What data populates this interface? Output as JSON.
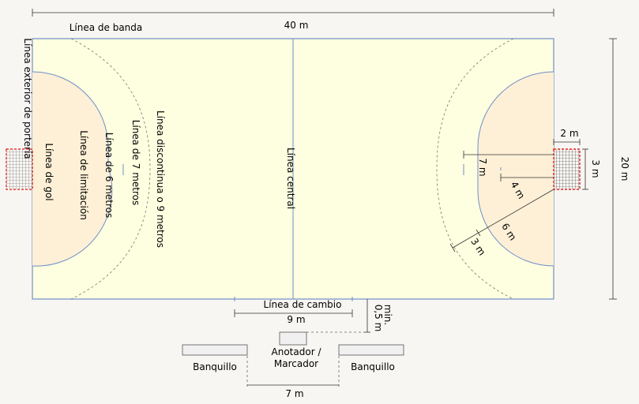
{
  "labels": {
    "length": "40 m",
    "width": "20 m",
    "sideline": "Línea de banda",
    "outer_goal_line": "Línea exterior de portería",
    "goal_line": "Línea de gol",
    "limitation_line": "Línea de limitación",
    "six_meter_line": "Línea de 6 metros",
    "seven_meter_line": "Línea de 7 metros",
    "dashed_line": "Línea discontinua o 9 metros",
    "center_line": "Línea central",
    "substitution_line": "Línea de cambio",
    "sub_distance": "9 m",
    "min_distance": "min.",
    "min_distance_value": "0,5 m",
    "scorer_line1": "Anotador /",
    "scorer_line2": "Marcador",
    "bench_left": "Banquillo",
    "bench_right": "Banquillo",
    "table_distance": "7 m",
    "goal_depth": "2 m",
    "goal_width": "3 m",
    "dim_7m": "7 m",
    "dim_4m": "4 m",
    "dim_6m": "6 m",
    "dim_3m": "3 m"
  },
  "colors": {
    "court": "#fefee0",
    "goal_area": "#fdf0d6",
    "court_line": "#6f8fc9",
    "goal_post": "#dd0000",
    "background": "#f8f6f2"
  }
}
